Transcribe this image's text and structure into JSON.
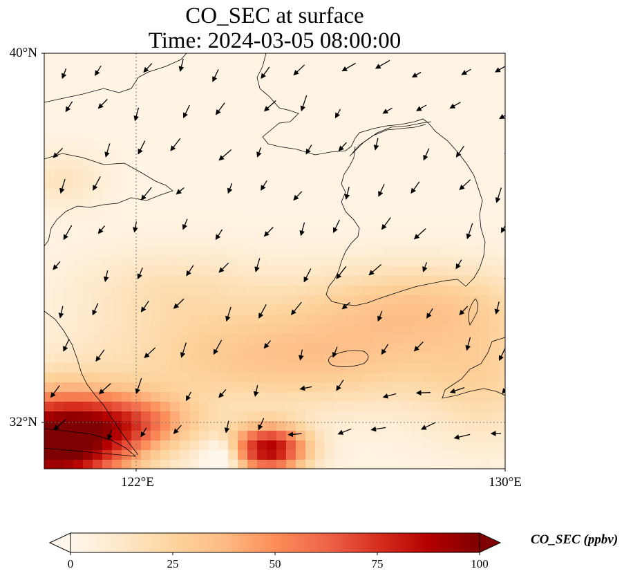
{
  "title": {
    "line1": "CO_SEC at surface",
    "line2": "Time: 2024-03-05 08:00:00"
  },
  "axes": {
    "lat_labels": [
      "40°N",
      "32°N"
    ],
    "lon_labels": [
      "122°E",
      "130°E"
    ]
  },
  "colorbar": {
    "label": "CO_SEC (ppbv)",
    "ticks": [
      "0",
      "25",
      "50",
      "75",
      "100"
    ],
    "range": [
      0,
      100
    ],
    "extend": "both",
    "colormap": "OrRd",
    "stops": [
      "#fff7ec",
      "#fee8c8",
      "#fdd49e",
      "#fdbb84",
      "#fc8d59",
      "#ef6548",
      "#d7301f",
      "#b30000",
      "#7f0000"
    ]
  },
  "map": {
    "lon_range": [
      120,
      130
    ],
    "lat_range": [
      31,
      40
    ],
    "gridlines": [
      "122°E meridian",
      "32°N parallel"
    ],
    "plume_notes": [
      "Highest values (~100 ppbv) over the Yangtze delta in the south-west corner",
      "Secondary maximum near the southern edge around 125°E",
      "Moderate band (~20-40 ppbv) stretching towards southern Korea and the Korea Strait"
    ],
    "wind_vectors": "black arrows mostly pointing south-west"
  }
}
